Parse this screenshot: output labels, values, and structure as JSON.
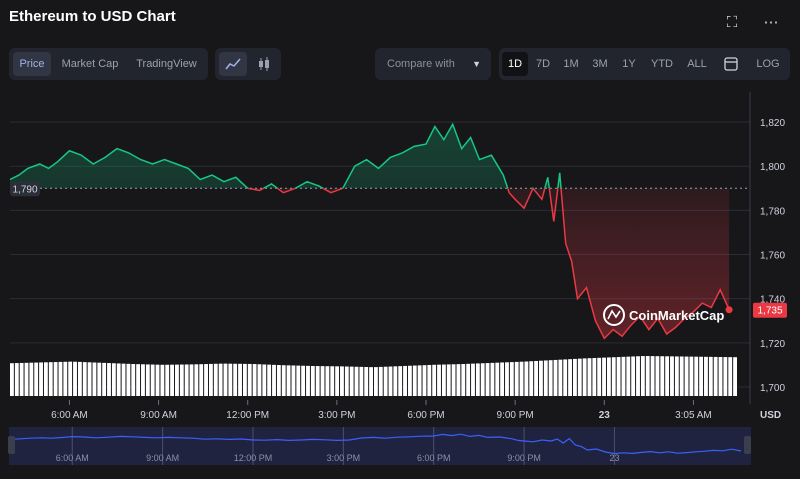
{
  "header": {
    "title": "Ethereum to USD Chart",
    "fullscreen_icon": "fullscreen-icon",
    "more_icon": "more-dots-icon"
  },
  "view_tabs": [
    "Price",
    "Market Cap",
    "TradingView"
  ],
  "active_view": "Price",
  "chart_style_icons": [
    "line-chart-icon",
    "candlestick-icon"
  ],
  "compare": {
    "label": "Compare with"
  },
  "ranges": [
    "1D",
    "7D",
    "1M",
    "3M",
    "1Y",
    "YTD",
    "ALL"
  ],
  "active_range": "1D",
  "calendar_icon": "calendar-icon",
  "log_label": "LOG",
  "watermark": "CoinMarketCap",
  "colors": {
    "up": "#16c784",
    "down": "#ea3943",
    "navigator": "#3861fb"
  },
  "chart_data": {
    "type": "line",
    "title": "Ethereum to USD Chart",
    "ylabel": "USD",
    "ylim": [
      1695,
      1830
    ],
    "y_ticks": [
      1700,
      1720,
      1740,
      1760,
      1780,
      1800,
      1820
    ],
    "x_ticks": [
      "6:00 AM",
      "9:00 AM",
      "12:00 PM",
      "3:00 PM",
      "6:00 PM",
      "9:00 PM",
      "23",
      "3:05 AM"
    ],
    "x_range": [
      0,
      24.5
    ],
    "x_tick_hours": [
      2,
      5,
      8,
      11,
      14,
      17,
      20,
      23
    ],
    "reference_price": 1790,
    "reference_label": "1,790",
    "current_price": 1735,
    "current_label": "1,735",
    "series": [
      {
        "x": [
          0,
          0.3,
          0.6,
          1.0,
          1.3,
          1.6,
          2.0,
          2.4,
          2.8,
          3.2,
          3.6,
          4.0,
          4.4,
          4.8,
          5.2,
          5.6,
          6.0,
          6.4,
          6.8,
          7.2,
          7.6,
          8.0,
          8.4,
          8.8,
          9.2,
          9.6,
          10.0,
          10.4,
          10.8,
          11.2,
          11.6,
          12.0,
          12.4,
          12.8,
          13.2,
          13.6,
          14.0,
          14.3,
          14.6,
          14.9,
          15.2,
          15.5,
          15.8,
          16.2,
          16.6,
          16.8,
          17.0,
          17.3,
          17.6,
          17.9,
          18.1,
          18.3,
          18.5,
          18.7,
          18.9,
          19.1,
          19.4,
          19.7,
          20.0,
          20.3,
          20.6,
          20.9,
          21.2,
          21.5,
          21.8,
          22.1,
          22.4,
          22.7,
          23.0,
          23.3,
          23.6,
          23.9,
          24.2
        ],
        "values": [
          1794,
          1796,
          1799,
          1801,
          1799,
          1802,
          1807,
          1805,
          1801,
          1804,
          1808,
          1806,
          1803,
          1801,
          1803,
          1801,
          1799,
          1794,
          1796,
          1793,
          1795,
          1790,
          1789,
          1792,
          1788,
          1790,
          1793,
          1791,
          1788,
          1790,
          1800,
          1803,
          1799,
          1804,
          1806,
          1809,
          1810,
          1818,
          1812,
          1819,
          1808,
          1813,
          1803,
          1805,
          1796,
          1788,
          1785,
          1781,
          1790,
          1785,
          1795,
          1775,
          1797,
          1765,
          1757,
          1740,
          1745,
          1730,
          1722,
          1726,
          1723,
          1728,
          1732,
          1726,
          1731,
          1724,
          1727,
          1731,
          1734,
          1738,
          1736,
          1744,
          1735
        ]
      }
    ],
    "volume": [
      0.82,
      0.84,
      0.86,
      0.83,
      0.8,
      0.78,
      0.79,
      0.81,
      0.8,
      0.77,
      0.75,
      0.74,
      0.72,
      0.75,
      0.78,
      0.8,
      0.83,
      0.86,
      0.9,
      0.94,
      0.97,
      1.0,
      0.99,
      0.98,
      0.97
    ],
    "navigator": {
      "x_ticks": [
        "6:00 AM",
        "9:00 AM",
        "12:00 PM",
        "3:00 PM",
        "6:00 PM",
        "9:00 PM",
        "23"
      ]
    }
  }
}
